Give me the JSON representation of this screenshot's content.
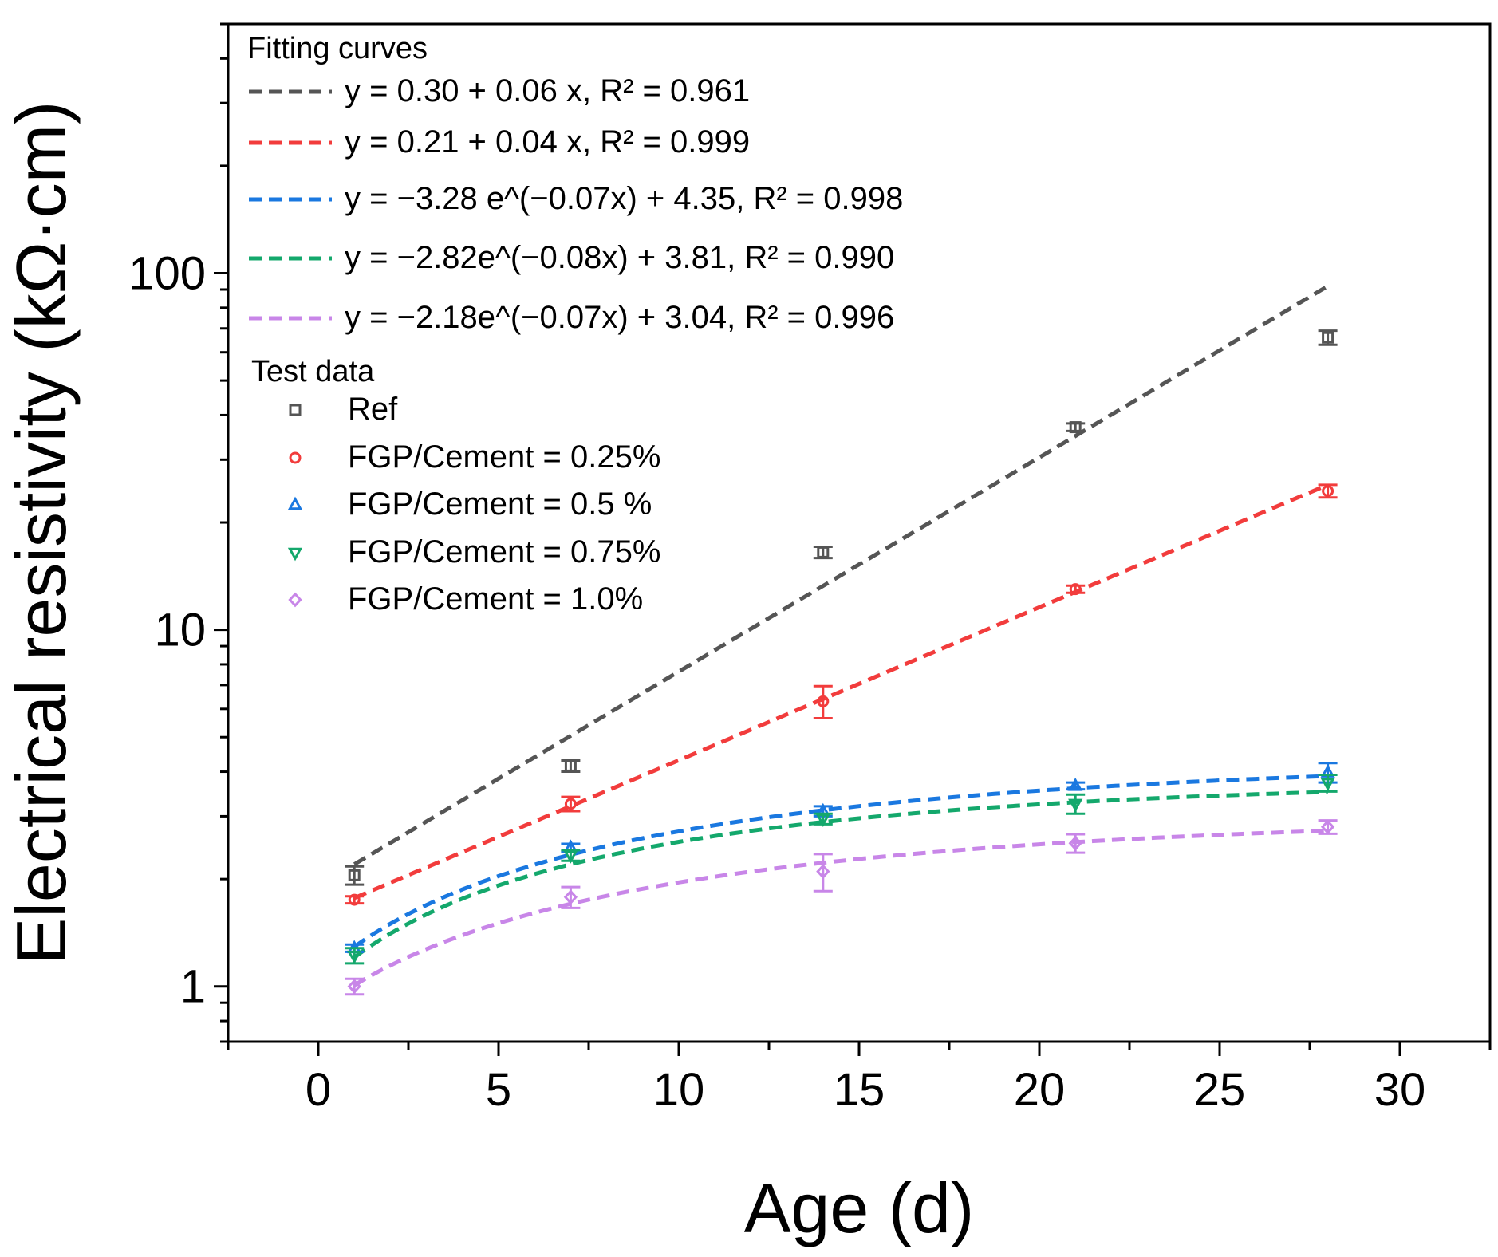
{
  "chart_data": {
    "type": "scatter",
    "xlabel": "Age (d)",
    "ylabel": "Electrical resistivity (kΩ·cm)",
    "x_scale": "linear",
    "y_scale": "log",
    "xlim": [
      -2.5,
      32.5
    ],
    "ylim": [
      0.7,
      500
    ],
    "x_ticks": [
      0,
      5,
      10,
      15,
      20,
      25,
      30
    ],
    "x_tick_labels": [
      "0",
      "5",
      "10",
      "15",
      "20",
      "25",
      "30"
    ],
    "y_ticks": [
      1,
      10,
      100
    ],
    "y_tick_labels": [
      "1",
      "10",
      "100"
    ],
    "legend_position": "top-left",
    "fitting_header": "Fitting curves",
    "test_header": "Test data",
    "fits": [
      {
        "label": "y = 0.30 + 0.06 x, R² = 0.961",
        "color": "#555555"
      },
      {
        "label": "y = 0.21 + 0.04 x, R² = 0.999",
        "color": "#f23c3c"
      },
      {
        "label": "y = −3.28 e^(−0.07x) + 4.35, R² = 0.998",
        "color": "#1a78e0"
      },
      {
        "label": "y = −2.82e^(−0.08x) + 3.81, R² = 0.990",
        "color": "#14a86c"
      },
      {
        "label": "y = −2.18e^(−0.07x) + 3.04, R² = 0.996",
        "color": "#c886e8"
      }
    ],
    "series": [
      {
        "name": "Ref",
        "marker": "square",
        "color": "#555555",
        "x": [
          1,
          7,
          14,
          21,
          28
        ],
        "y": [
          2.05,
          4.15,
          16.5,
          37.0,
          66.0
        ],
        "err": [
          0.12,
          0.15,
          0.6,
          0.9,
          3.0
        ]
      },
      {
        "name": "FGP/Cement = 0.25%",
        "marker": "circle",
        "color": "#f23c3c",
        "x": [
          1,
          7,
          14,
          21,
          28
        ],
        "y": [
          1.75,
          3.25,
          6.3,
          13.0,
          24.5
        ],
        "err": [
          0.04,
          0.15,
          0.65,
          0.3,
          1.0
        ]
      },
      {
        "name": "FGP/Cement  = 0.5 %",
        "marker": "triangle-up",
        "color": "#1a78e0",
        "x": [
          1,
          7,
          14,
          21,
          28
        ],
        "y": [
          1.28,
          2.45,
          3.1,
          3.65,
          3.98
        ],
        "err": [
          0.03,
          0.06,
          0.1,
          0.08,
          0.25
        ]
      },
      {
        "name": "FGP/Cement = 0.75%",
        "marker": "triangle-down",
        "color": "#14a86c",
        "x": [
          1,
          7,
          14,
          21,
          28
        ],
        "y": [
          1.22,
          2.33,
          2.95,
          3.25,
          3.72
        ],
        "err": [
          0.06,
          0.08,
          0.1,
          0.2,
          0.2
        ]
      },
      {
        "name": "FGP/Cement = 1.0%",
        "marker": "diamond",
        "color": "#c886e8",
        "x": [
          1,
          7,
          14,
          21,
          28
        ],
        "y": [
          1.0,
          1.78,
          2.1,
          2.52,
          2.8
        ],
        "err": [
          0.05,
          0.12,
          0.25,
          0.15,
          0.12
        ]
      }
    ]
  }
}
